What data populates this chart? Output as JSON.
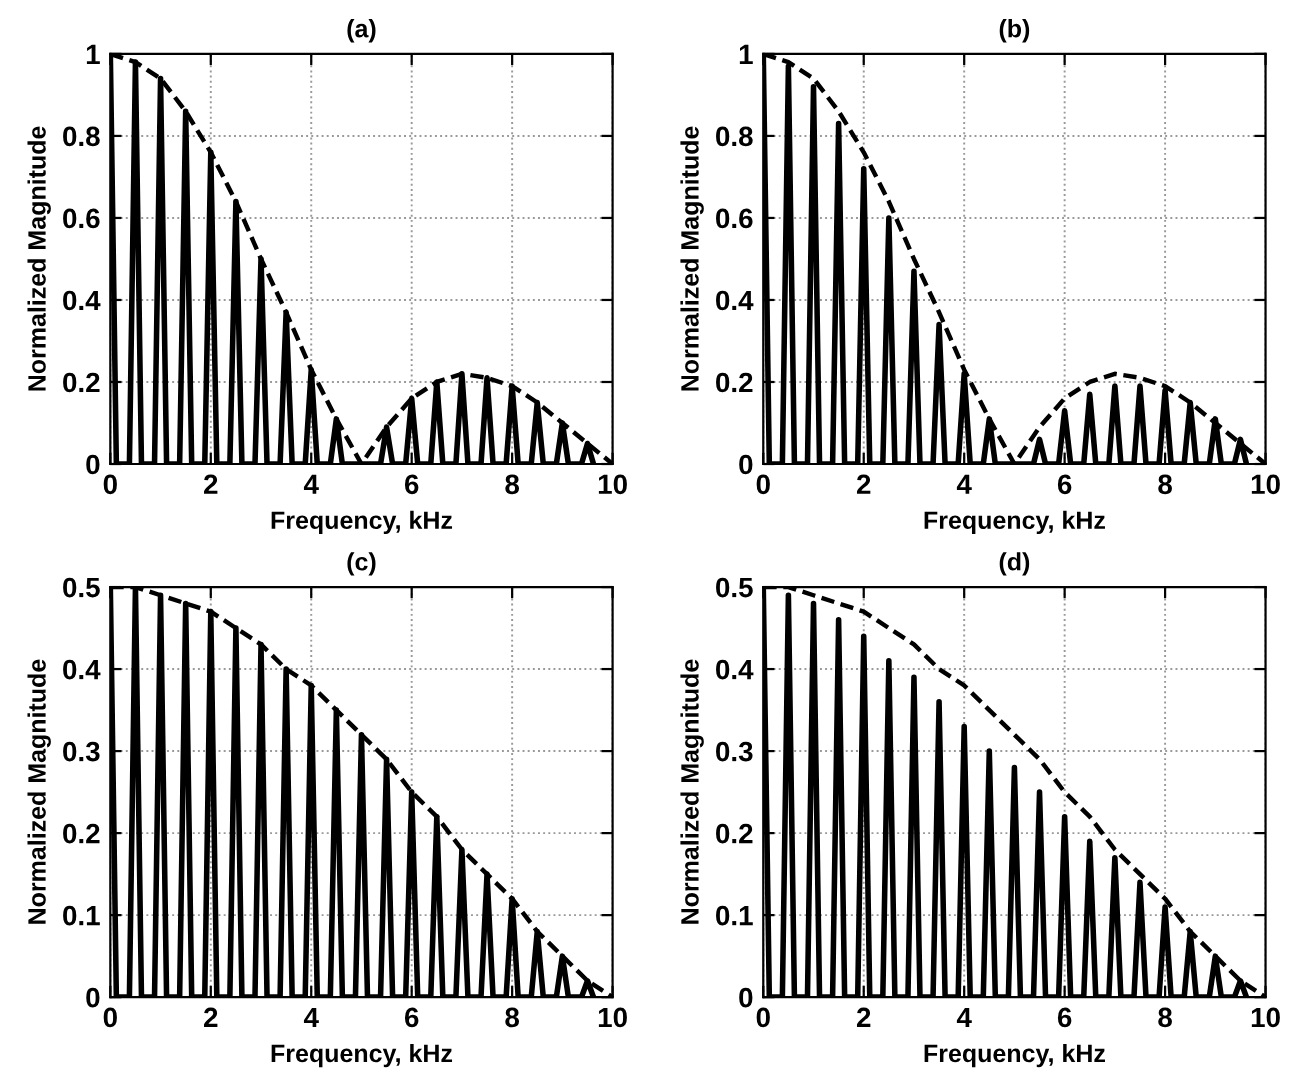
{
  "chart_data": [
    {
      "type": "line",
      "title": "(a)",
      "xlabel": "Frequency, kHz",
      "ylabel": "Normalized Magnitude",
      "xlim": [
        0,
        10
      ],
      "xticks": [
        0,
        2,
        4,
        6,
        8,
        10
      ],
      "ylim": [
        0,
        1
      ],
      "yticks": [
        0,
        0.2,
        0.4,
        0.6,
        0.8,
        1
      ],
      "grid": true,
      "series": [
        {
          "color": "#000000",
          "line_style": "solid",
          "x": [
            0,
            0.12,
            0.38,
            0.5,
            0.62,
            0.88,
            1,
            1.12,
            1.38,
            1.5,
            1.62,
            1.88,
            2,
            2.12,
            2.38,
            2.5,
            2.62,
            2.88,
            3,
            3.12,
            3.38,
            3.5,
            3.62,
            3.88,
            4,
            4.12,
            4.38,
            4.5,
            4.62,
            5.38,
            5.5,
            5.62,
            5.88,
            6,
            6.12,
            6.38,
            6.5,
            6.62,
            6.88,
            7,
            7.12,
            7.38,
            7.5,
            7.62,
            7.88,
            8,
            8.12,
            8.38,
            8.5,
            8.62,
            8.88,
            9,
            9.12,
            9.38,
            9.5,
            9.62
          ],
          "values": [
            1,
            0,
            0,
            0.98,
            0,
            0,
            0.94,
            0,
            0,
            0.86,
            0,
            0,
            0.76,
            0,
            0,
            0.64,
            0,
            0,
            0.5,
            0,
            0,
            0.37,
            0,
            0,
            0.23,
            0,
            0,
            0.11,
            0,
            0,
            0.09,
            0,
            0,
            0.16,
            0,
            0,
            0.2,
            0,
            0,
            0.22,
            0,
            0,
            0.21,
            0,
            0,
            0.19,
            0,
            0,
            0.15,
            0,
            0,
            0.1,
            0,
            0,
            0.05,
            0
          ]
        },
        {
          "color": "#000000",
          "line_style": "dashed",
          "x": [
            0,
            0.5,
            1,
            1.5,
            2,
            2.5,
            3,
            3.5,
            4,
            4.5,
            5,
            5.5,
            6,
            6.5,
            7,
            7.5,
            8,
            8.5,
            9,
            9.5,
            10
          ],
          "values": [
            1,
            0.98,
            0.94,
            0.86,
            0.76,
            0.64,
            0.5,
            0.37,
            0.23,
            0.11,
            0,
            0.09,
            0.16,
            0.2,
            0.22,
            0.21,
            0.19,
            0.15,
            0.1,
            0.05,
            0
          ]
        }
      ]
    },
    {
      "type": "line",
      "title": "(b)",
      "xlabel": "Frequency, kHz",
      "ylabel": "Normalized Magnitude",
      "xlim": [
        0,
        10
      ],
      "xticks": [
        0,
        2,
        4,
        6,
        8,
        10
      ],
      "ylim": [
        0,
        1
      ],
      "yticks": [
        0,
        0.2,
        0.4,
        0.6,
        0.8,
        1
      ],
      "grid": true,
      "series": [
        {
          "color": "#000000",
          "line_style": "solid",
          "x": [
            0,
            0.12,
            0.38,
            0.5,
            0.62,
            0.88,
            1,
            1.12,
            1.38,
            1.5,
            1.62,
            1.88,
            2,
            2.12,
            2.38,
            2.5,
            2.62,
            2.88,
            3,
            3.12,
            3.38,
            3.5,
            3.62,
            3.88,
            4,
            4.12,
            4.38,
            4.5,
            4.62,
            5.38,
            5.5,
            5.62,
            5.88,
            6,
            6.12,
            6.38,
            6.5,
            6.62,
            6.88,
            7,
            7.12,
            7.38,
            7.5,
            7.62,
            7.88,
            8,
            8.12,
            8.38,
            8.5,
            8.62,
            8.88,
            9,
            9.12,
            9.38,
            9.5,
            9.62
          ],
          "values": [
            1,
            0,
            0,
            0.97,
            0,
            0,
            0.92,
            0,
            0,
            0.83,
            0,
            0,
            0.72,
            0,
            0,
            0.6,
            0,
            0,
            0.47,
            0,
            0,
            0.34,
            0,
            0,
            0.22,
            0,
            0,
            0.11,
            0,
            0,
            0.06,
            0,
            0,
            0.13,
            0,
            0,
            0.17,
            0,
            0,
            0.19,
            0,
            0,
            0.19,
            0,
            0,
            0.18,
            0,
            0,
            0.15,
            0,
            0,
            0.11,
            0,
            0,
            0.06,
            0
          ]
        },
        {
          "color": "#000000",
          "line_style": "dashed",
          "x": [
            0,
            0.5,
            1,
            1.5,
            2,
            2.5,
            3,
            3.5,
            4,
            4.5,
            5,
            5.5,
            6,
            6.5,
            7,
            7.5,
            8,
            8.5,
            9,
            9.5,
            10
          ],
          "values": [
            1,
            0.98,
            0.94,
            0.86,
            0.76,
            0.64,
            0.5,
            0.37,
            0.23,
            0.11,
            0,
            0.09,
            0.16,
            0.2,
            0.22,
            0.21,
            0.19,
            0.15,
            0.1,
            0.05,
            0
          ]
        }
      ]
    },
    {
      "type": "line",
      "title": "(c)",
      "xlabel": "Frequency, kHz",
      "ylabel": "Normalized Magnitude",
      "xlim": [
        0,
        10
      ],
      "xticks": [
        0,
        2,
        4,
        6,
        8,
        10
      ],
      "ylim": [
        0,
        0.5
      ],
      "yticks": [
        0,
        0.1,
        0.2,
        0.3,
        0.4,
        0.5
      ],
      "grid": true,
      "series": [
        {
          "color": "#000000",
          "line_style": "solid",
          "x": [
            0,
            0.12,
            0.38,
            0.5,
            0.62,
            0.88,
            1,
            1.12,
            1.38,
            1.5,
            1.62,
            1.88,
            2,
            2.12,
            2.38,
            2.5,
            2.62,
            2.88,
            3,
            3.12,
            3.38,
            3.5,
            3.62,
            3.88,
            4,
            4.12,
            4.38,
            4.5,
            4.62,
            4.88,
            5,
            5.12,
            5.38,
            5.5,
            5.62,
            5.88,
            6,
            6.12,
            6.38,
            6.5,
            6.62,
            6.88,
            7,
            7.12,
            7.38,
            7.5,
            7.62,
            7.88,
            8,
            8.12,
            8.38,
            8.5,
            8.62,
            8.88,
            9,
            9.12,
            9.38,
            9.5,
            9.62
          ],
          "values": [
            0.5,
            0,
            0,
            0.5,
            0,
            0,
            0.49,
            0,
            0,
            0.48,
            0,
            0,
            0.47,
            0,
            0,
            0.45,
            0,
            0,
            0.43,
            0,
            0,
            0.4,
            0,
            0,
            0.38,
            0,
            0,
            0.35,
            0,
            0,
            0.32,
            0,
            0,
            0.29,
            0,
            0,
            0.25,
            0,
            0,
            0.22,
            0,
            0,
            0.18,
            0,
            0,
            0.15,
            0,
            0,
            0.12,
            0,
            0,
            0.08,
            0,
            0,
            0.05,
            0,
            0,
            0.02,
            0
          ]
        },
        {
          "color": "#000000",
          "line_style": "dashed",
          "x": [
            0,
            0.5,
            1,
            1.5,
            2,
            2.5,
            3,
            3.5,
            4,
            4.5,
            5,
            5.5,
            6,
            6.5,
            7,
            7.5,
            8,
            8.5,
            9,
            9.5,
            10
          ],
          "values": [
            0.5,
            0.5,
            0.49,
            0.48,
            0.47,
            0.45,
            0.43,
            0.4,
            0.38,
            0.35,
            0.32,
            0.29,
            0.25,
            0.22,
            0.18,
            0.15,
            0.12,
            0.08,
            0.05,
            0.02,
            0
          ]
        }
      ]
    },
    {
      "type": "line",
      "title": "(d)",
      "xlabel": "Frequency, kHz",
      "ylabel": "Normalized Magnitude",
      "xlim": [
        0,
        10
      ],
      "xticks": [
        0,
        2,
        4,
        6,
        8,
        10
      ],
      "ylim": [
        0,
        0.5
      ],
      "yticks": [
        0,
        0.1,
        0.2,
        0.3,
        0.4,
        0.5
      ],
      "grid": true,
      "series": [
        {
          "color": "#000000",
          "line_style": "solid",
          "x": [
            0,
            0.12,
            0.38,
            0.5,
            0.62,
            0.88,
            1,
            1.12,
            1.38,
            1.5,
            1.62,
            1.88,
            2,
            2.12,
            2.38,
            2.5,
            2.62,
            2.88,
            3,
            3.12,
            3.38,
            3.5,
            3.62,
            3.88,
            4,
            4.12,
            4.38,
            4.5,
            4.62,
            4.88,
            5,
            5.12,
            5.38,
            5.5,
            5.62,
            5.88,
            6,
            6.12,
            6.38,
            6.5,
            6.62,
            6.88,
            7,
            7.12,
            7.38,
            7.5,
            7.62,
            7.88,
            8,
            8.12,
            8.38,
            8.5,
            8.62,
            8.88,
            9,
            9.12,
            9.38,
            9.5,
            9.62
          ],
          "values": [
            0.5,
            0,
            0,
            0.49,
            0,
            0,
            0.48,
            0,
            0,
            0.46,
            0,
            0,
            0.44,
            0,
            0,
            0.41,
            0,
            0,
            0.39,
            0,
            0,
            0.36,
            0,
            0,
            0.33,
            0,
            0,
            0.3,
            0,
            0,
            0.28,
            0,
            0,
            0.25,
            0,
            0,
            0.22,
            0,
            0,
            0.19,
            0,
            0,
            0.17,
            0,
            0,
            0.14,
            0,
            0,
            0.11,
            0,
            0,
            0.08,
            0,
            0,
            0.05,
            0,
            0,
            0.02,
            0
          ]
        },
        {
          "color": "#000000",
          "line_style": "dashed",
          "x": [
            0,
            0.5,
            1,
            1.5,
            2,
            2.5,
            3,
            3.5,
            4,
            4.5,
            5,
            5.5,
            6,
            6.5,
            7,
            7.5,
            8,
            8.5,
            9,
            9.5,
            10
          ],
          "values": [
            0.5,
            0.5,
            0.49,
            0.48,
            0.47,
            0.45,
            0.43,
            0.4,
            0.38,
            0.35,
            0.32,
            0.29,
            0.25,
            0.22,
            0.18,
            0.15,
            0.12,
            0.08,
            0.05,
            0.02,
            0
          ]
        }
      ]
    }
  ]
}
